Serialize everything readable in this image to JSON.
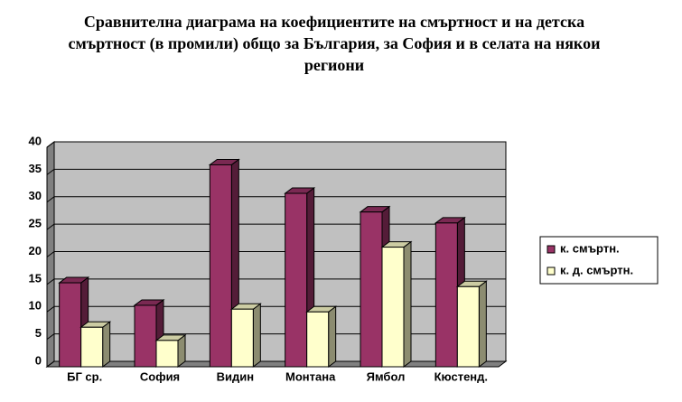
{
  "chart_data": {
    "type": "bar3d",
    "title": "Сравнителна диаграма на коефициентите на смъртност и на детска смъртност (в промили) общо за България, за София и в селата на някои региони",
    "categories": [
      "БГ ср.",
      "София",
      "Видин",
      "Монтана",
      "Ямбол",
      "Кюстенд."
    ],
    "series": [
      {
        "name": "к. смъртн.",
        "color": "#993366",
        "values": [
          15.3,
          11.2,
          36.8,
          31.6,
          28.2,
          26.2
        ]
      },
      {
        "name": "к. д. смъртн.",
        "color": "#ffffcc",
        "values": [
          7.2,
          4.8,
          10.5,
          10.0,
          21.8,
          14.6
        ]
      }
    ],
    "ylim": [
      0,
      40
    ],
    "yticks": [
      0,
      5,
      10,
      15,
      20,
      25,
      30,
      35,
      40
    ],
    "grid": true,
    "legend": "right"
  }
}
